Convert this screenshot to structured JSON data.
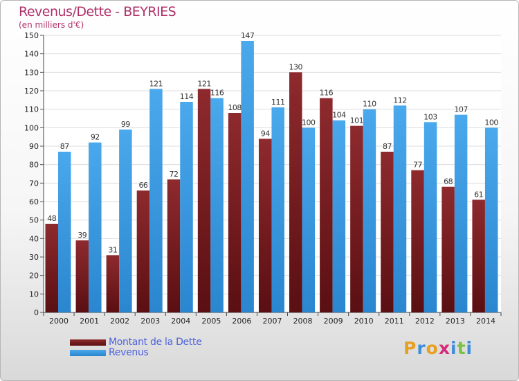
{
  "chart_data": {
    "type": "bar",
    "title": "Revenus/Dette - BEYRIES",
    "subtitle": "(en milliers d'€)",
    "categories": [
      "2000",
      "2001",
      "2002",
      "2003",
      "2004",
      "2005",
      "2006",
      "2007",
      "2008",
      "2009",
      "2010",
      "2011",
      "2012",
      "2013",
      "2014"
    ],
    "series": [
      {
        "name": "Montant de la Dette",
        "color": "#7a1e22",
        "values": [
          48,
          39,
          31,
          66,
          72,
          121,
          108,
          94,
          130,
          116,
          101,
          87,
          77,
          68,
          61
        ]
      },
      {
        "name": "Revenus",
        "color": "#3b9be3",
        "values": [
          87,
          92,
          99,
          121,
          114,
          116,
          147,
          111,
          100,
          104,
          110,
          112,
          103,
          107,
          100
        ]
      }
    ],
    "ylim": [
      0,
      150
    ],
    "yticks": [
      0,
      10,
      20,
      30,
      40,
      50,
      60,
      70,
      80,
      90,
      100,
      110,
      120,
      130,
      140,
      150
    ],
    "grid": true,
    "legend_position": "bottom-left"
  },
  "logo": {
    "letters": [
      "P",
      "r",
      "o",
      "x",
      "i",
      "t",
      "i"
    ],
    "colors": [
      "#e8a020",
      "#3f8fd8",
      "#e8a020",
      "#d82a7a",
      "#3f8fd8",
      "#7ac043",
      "#3f8fd8"
    ]
  }
}
